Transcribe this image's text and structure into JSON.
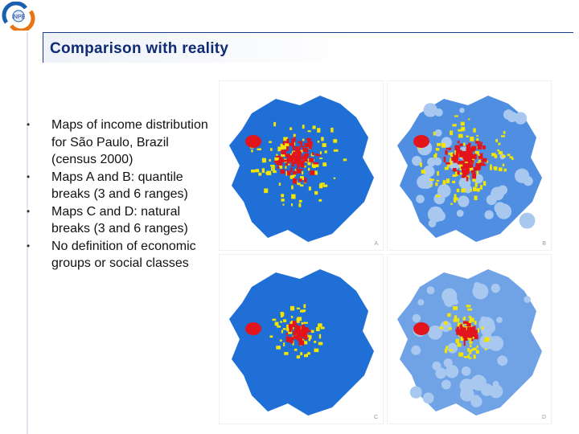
{
  "slide": {
    "title": "Comparison with reality",
    "bullets": [
      "Maps of income distribution for São Paulo, Brazil (census 2000)",
      "Maps A and B: quantile breaks (3 and 6 ranges)",
      "Maps C and D: natural breaks (3 and 6 ranges)",
      "No definition of economic groups or social classes"
    ]
  },
  "maps": [
    {
      "label": "A",
      "colors": {
        "base": "#1f6fd6",
        "mid": "#f2e600",
        "high": "#e2141c"
      }
    },
    {
      "label": "B",
      "colors": {
        "base": "#4f8ee0",
        "mid": "#f2e600",
        "high": "#e2141c"
      }
    },
    {
      "label": "C",
      "colors": {
        "base": "#1f6fd6",
        "mid": "#f2e600",
        "high": "#e2141c"
      }
    },
    {
      "label": "D",
      "colors": {
        "base": "#6fa3e6",
        "mid": "#f2e600",
        "high": "#e2141c"
      }
    }
  ],
  "logo": {
    "icon": "inpe-logo-icon",
    "text": "INPE"
  }
}
